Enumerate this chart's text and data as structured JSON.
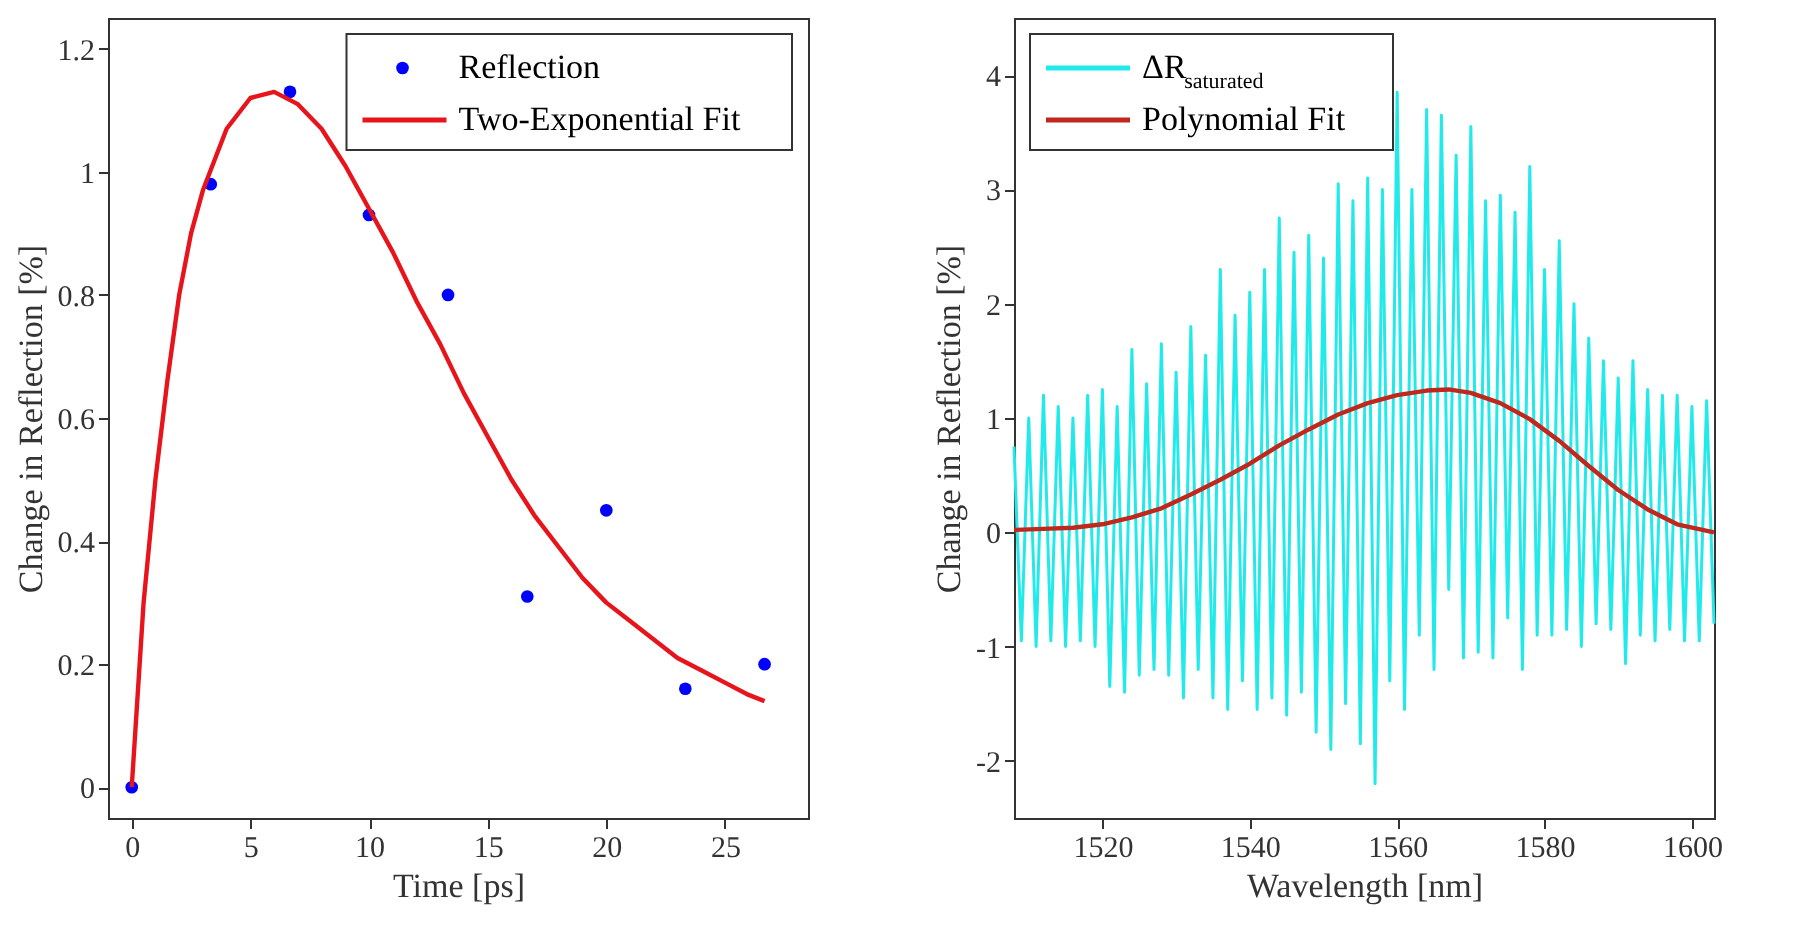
{
  "chart_data": [
    {
      "type": "scatter",
      "xlabel": "Time [ps]",
      "ylabel": "Change in Reflection [%]",
      "xlim": [
        -1,
        28.5
      ],
      "ylim": [
        -0.05,
        1.25
      ],
      "xticks": [
        0,
        5,
        10,
        15,
        20,
        25
      ],
      "yticks": [
        0,
        0.2,
        0.4,
        0.6,
        0.8,
        1,
        1.2
      ],
      "legend": "top right",
      "series": [
        {
          "name": "Reflection",
          "marker": "circle",
          "color": "#0000ff",
          "x": [
            0,
            3.33,
            6.67,
            10,
            13.33,
            16.67,
            20,
            23.33,
            26.67
          ],
          "values": [
            0,
            0.98,
            1.13,
            0.93,
            0.8,
            0.31,
            0.45,
            0.16,
            0.2
          ]
        },
        {
          "name": "Two-Exponential Fit",
          "type": "line",
          "color": "#e8141c",
          "x": [
            0,
            0.5,
            1,
            1.5,
            2,
            2.5,
            3,
            4,
            5,
            6,
            7,
            8,
            9,
            10,
            11,
            12,
            13,
            14,
            15,
            16,
            17,
            18,
            19,
            20,
            21,
            22,
            23,
            24,
            25,
            26,
            26.67
          ],
          "values": [
            0,
            0.3,
            0.5,
            0.66,
            0.8,
            0.9,
            0.97,
            1.07,
            1.12,
            1.13,
            1.11,
            1.07,
            1.01,
            0.94,
            0.87,
            0.79,
            0.72,
            0.64,
            0.57,
            0.5,
            0.44,
            0.39,
            0.34,
            0.3,
            0.27,
            0.24,
            0.21,
            0.19,
            0.17,
            0.15,
            0.14
          ]
        }
      ]
    },
    {
      "type": "line",
      "xlabel": "Wavelength [nm]",
      "ylabel": "Change in Reflection [%]",
      "xlim": [
        1508,
        1603
      ],
      "ylim": [
        -2.5,
        4.5
      ],
      "xticks": [
        1520,
        1540,
        1560,
        1580,
        1600
      ],
      "yticks": [
        -2,
        -1,
        0,
        1,
        2,
        3,
        4
      ],
      "legend": "top left",
      "series": [
        {
          "name": "ΔR$_{saturated}$",
          "color": "#22eaea",
          "x": [
            1508,
            1509,
            1510,
            1511,
            1512,
            1513,
            1514,
            1515,
            1516,
            1517,
            1518,
            1519,
            1520,
            1521,
            1522,
            1523,
            1524,
            1525,
            1526,
            1527,
            1528,
            1529,
            1530,
            1531,
            1532,
            1533,
            1534,
            1535,
            1536,
            1537,
            1538,
            1539,
            1540,
            1541,
            1542,
            1543,
            1544,
            1545,
            1546,
            1547,
            1548,
            1549,
            1550,
            1551,
            1552,
            1553,
            1554,
            1555,
            1556,
            1557,
            1558,
            1559,
            1560,
            1561,
            1562,
            1563,
            1564,
            1565,
            1566,
            1567,
            1568,
            1569,
            1570,
            1571,
            1572,
            1573,
            1574,
            1575,
            1576,
            1577,
            1578,
            1579,
            1580,
            1581,
            1582,
            1583,
            1584,
            1585,
            1586,
            1587,
            1588,
            1589,
            1590,
            1591,
            1592,
            1593,
            1594,
            1595,
            1596,
            1597,
            1598,
            1599,
            1600,
            1601,
            1602,
            1603
          ],
          "values": [
            0.75,
            -0.95,
            1.0,
            -1.0,
            1.2,
            -0.95,
            1.1,
            -1.0,
            1.0,
            -0.95,
            1.2,
            -1.0,
            1.25,
            -1.35,
            1.1,
            -1.4,
            1.6,
            -1.25,
            1.3,
            -1.2,
            1.65,
            -1.25,
            1.4,
            -1.45,
            1.8,
            -1.2,
            1.55,
            -1.45,
            2.3,
            -1.55,
            1.9,
            -1.3,
            2.1,
            -1.55,
            2.3,
            -1.45,
            2.75,
            -1.6,
            2.45,
            -1.4,
            2.6,
            -1.75,
            2.4,
            -1.9,
            3.05,
            -1.5,
            2.9,
            -1.85,
            3.1,
            -2.2,
            3.0,
            -1.3,
            3.85,
            -1.55,
            3.0,
            -0.9,
            3.7,
            -1.2,
            3.65,
            -0.5,
            3.3,
            -1.1,
            3.55,
            -1.05,
            2.9,
            -1.1,
            2.95,
            -0.75,
            2.8,
            -1.2,
            3.2,
            -0.9,
            2.3,
            -0.9,
            2.55,
            -0.85,
            2.0,
            -1.0,
            1.7,
            -0.8,
            1.5,
            -0.85,
            1.35,
            -1.15,
            1.5,
            -0.9,
            1.25,
            -0.95,
            1.2,
            -0.85,
            1.2,
            -0.95,
            1.1,
            -0.95,
            1.15,
            -0.8
          ]
        },
        {
          "name": "Polynomial Fit",
          "color": "#c0281e",
          "x": [
            1508,
            1512,
            1516,
            1520,
            1524,
            1528,
            1532,
            1536,
            1540,
            1544,
            1548,
            1552,
            1556,
            1560,
            1564,
            1567,
            1570,
            1574,
            1578,
            1582,
            1586,
            1590,
            1594,
            1598,
            1603
          ],
          "values": [
            0.02,
            0.03,
            0.04,
            0.07,
            0.13,
            0.21,
            0.33,
            0.46,
            0.6,
            0.76,
            0.9,
            1.03,
            1.13,
            1.2,
            1.24,
            1.25,
            1.22,
            1.13,
            0.99,
            0.8,
            0.58,
            0.37,
            0.2,
            0.07,
            0.0
          ]
        }
      ]
    }
  ]
}
